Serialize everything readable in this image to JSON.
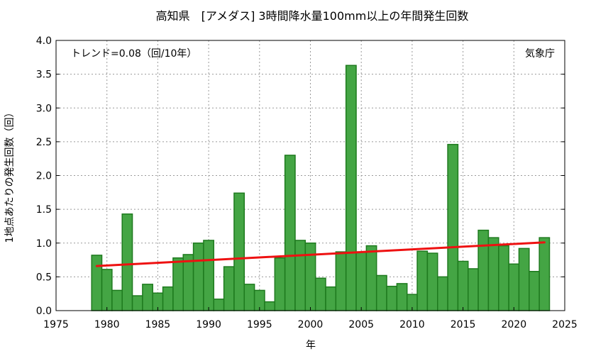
{
  "chart_data": {
    "type": "bar",
    "title": "高知県　[アメダス] 3時間降水量100mm以上の年間発生回数",
    "xlabel": "年",
    "ylabel": "1地点あたりの発生回数（回）",
    "annotation_left": "トレンド=0.08（回/10年）",
    "annotation_right": "気象庁",
    "xlim": [
      1975,
      2025
    ],
    "ylim": [
      0,
      4.0
    ],
    "x_ticks": [
      1975,
      1980,
      1985,
      1990,
      1995,
      2000,
      2005,
      2010,
      2015,
      2020,
      2025
    ],
    "y_ticks": [
      "0.0",
      "0.5",
      "1.0",
      "1.5",
      "2.0",
      "2.5",
      "3.0",
      "3.5",
      "4.0"
    ],
    "grid": true,
    "bar_color": "#44a544",
    "bar_edge_color": "#1e7a1e",
    "trend_color": "#ee1111",
    "years": [
      1979,
      1980,
      1981,
      1982,
      1983,
      1984,
      1985,
      1986,
      1987,
      1988,
      1989,
      1990,
      1991,
      1992,
      1993,
      1994,
      1995,
      1996,
      1997,
      1998,
      1999,
      2000,
      2001,
      2002,
      2003,
      2004,
      2005,
      2006,
      2007,
      2008,
      2009,
      2010,
      2011,
      2012,
      2013,
      2014,
      2015,
      2016,
      2017,
      2018,
      2019,
      2020,
      2021,
      2022,
      2023
    ],
    "values": [
      0.82,
      0.61,
      0.3,
      1.43,
      0.22,
      0.39,
      0.26,
      0.35,
      0.78,
      0.83,
      1.0,
      1.04,
      0.17,
      0.65,
      1.74,
      0.39,
      0.3,
      0.13,
      0.78,
      2.3,
      1.04,
      1.0,
      0.48,
      0.35,
      0.87,
      3.63,
      0.87,
      0.96,
      0.52,
      0.36,
      0.4,
      0.24,
      0.88,
      0.85,
      0.5,
      2.46,
      0.73,
      0.62,
      1.19,
      1.08,
      0.96,
      0.69,
      0.92,
      0.58,
      1.08
    ],
    "trend": {
      "x": [
        1979,
        2023
      ],
      "y": [
        0.66,
        1.01
      ]
    }
  }
}
